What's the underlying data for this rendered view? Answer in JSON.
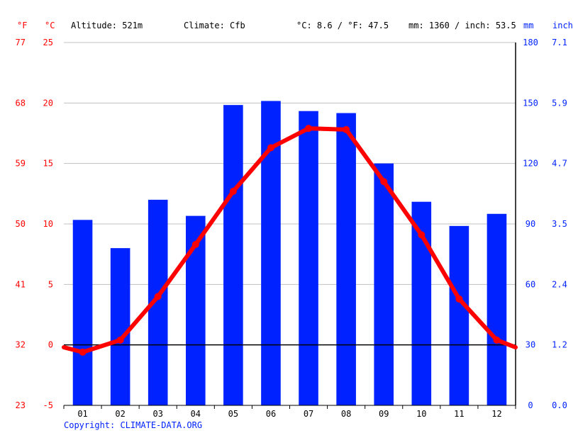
{
  "header": {
    "unit_f": "°F",
    "unit_c": "°C",
    "altitude": "Altitude: 521m",
    "climate": "Climate: Cfb",
    "temp_avg": "°C: 8.6 / °F: 47.5",
    "precip_total": "mm: 1360 / inch: 53.5",
    "unit_mm": "mm",
    "unit_inch": "inch"
  },
  "copyright": "Copyright: CLIMATE-DATA.ORG",
  "chart_data": {
    "type": "bar+line",
    "categories": [
      "01",
      "02",
      "03",
      "04",
      "05",
      "06",
      "07",
      "08",
      "09",
      "10",
      "11",
      "12"
    ],
    "series": [
      {
        "kind": "bar",
        "axis": "precipitation_mm",
        "values": [
          92,
          78,
          102,
          94,
          149,
          151,
          146,
          145,
          120,
          101,
          89,
          95
        ]
      },
      {
        "kind": "line",
        "axis": "temperature_c",
        "values": [
          -0.6,
          0.4,
          4.0,
          8.3,
          12.7,
          16.3,
          17.9,
          17.8,
          13.5,
          9.1,
          3.8,
          0.4
        ]
      }
    ],
    "edge_values_c": {
      "start": -0.2,
      "end": -0.2
    },
    "axes": {
      "temp_c": {
        "ylim": [
          -5,
          25
        ],
        "ticks": [
          "-5",
          "0",
          "5",
          "10",
          "15",
          "20",
          "25"
        ]
      },
      "temp_f": {
        "ticks": [
          "23",
          "32",
          "41",
          "50",
          "59",
          "68",
          "77"
        ]
      },
      "precip_mm": {
        "ylim": [
          0,
          180
        ],
        "ticks": [
          "0",
          "30",
          "60",
          "90",
          "120",
          "150",
          "180"
        ]
      },
      "precip_inch": {
        "ticks": [
          "0.0",
          "1.2",
          "2.4",
          "3.5",
          "4.7",
          "5.9",
          "7.1"
        ]
      }
    },
    "grid": true,
    "colors": {
      "temperature": "#ff0000",
      "precipitation": "#0022ff",
      "grid": "#c0c0c0",
      "temp_label": "#ff0000",
      "precip_label": "#0022ff",
      "text": "#000000"
    }
  }
}
